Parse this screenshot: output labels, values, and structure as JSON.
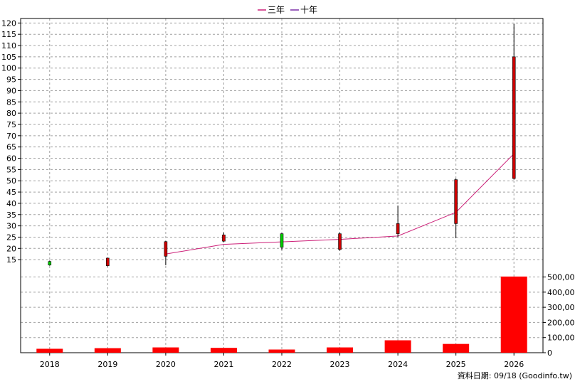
{
  "chart_data": {
    "type": "candlestick-with-volume",
    "legend": [
      {
        "name": "三年",
        "color": "#cc1f78"
      },
      {
        "name": "十年",
        "color": "#7a2fa8"
      }
    ],
    "categories": [
      "2018",
      "2019",
      "2020",
      "2021",
      "2022",
      "2023",
      "2024",
      "2025",
      "2026"
    ],
    "price_axis": {
      "min": 10,
      "max": 122,
      "ticks": [
        15,
        20,
        25,
        30,
        35,
        40,
        45,
        50,
        55,
        60,
        65,
        70,
        75,
        80,
        85,
        90,
        95,
        100,
        105,
        110,
        115,
        120
      ]
    },
    "volume_axis": {
      "min": 0,
      "max": 540000,
      "ticks": [
        0,
        100000,
        200000,
        300000,
        400000,
        500000
      ],
      "tick_labels": [
        "0",
        "100,000",
        "200,000",
        "300,000",
        "400,000",
        "500,000"
      ]
    },
    "candles": [
      {
        "year": "2018",
        "open": 12.6,
        "close": 14.2,
        "high": 14.6,
        "low": 12.3
      },
      {
        "year": "2019",
        "open": 15.7,
        "close": 12.3,
        "high": 15.9,
        "low": 12.0
      },
      {
        "year": "2020",
        "open": 23.0,
        "close": 16.5,
        "high": 23.3,
        "low": 12.5
      },
      {
        "year": "2021",
        "open": 26.0,
        "close": 23.2,
        "high": 27.0,
        "low": 22.8
      },
      {
        "year": "2022",
        "open": 20.5,
        "close": 26.5,
        "high": 26.8,
        "low": 19.2
      },
      {
        "year": "2023",
        "open": 26.5,
        "close": 19.5,
        "high": 27.0,
        "low": 19.0
      },
      {
        "year": "2024",
        "open": 31.0,
        "close": 26.5,
        "high": 39.0,
        "low": 25.0
      },
      {
        "year": "2025",
        "open": 50.5,
        "close": 31.0,
        "high": 51.0,
        "low": 24.5
      },
      {
        "year": "2026",
        "open": 105.0,
        "close": 51.0,
        "high": 119.5,
        "low": 50.5
      }
    ],
    "ma_lines": [
      {
        "name": "三年",
        "color": "#cc1f78",
        "points": [
          {
            "year": "2020",
            "value": 17.5
          },
          {
            "year": "2021",
            "value": 21.8
          },
          {
            "year": "2022",
            "value": 22.9
          },
          {
            "year": "2023",
            "value": 24.0
          },
          {
            "year": "2024",
            "value": 25.5
          },
          {
            "year": "2025",
            "value": 36.0
          },
          {
            "year": "2026",
            "value": 62.0
          }
        ]
      }
    ],
    "volume": [
      {
        "year": "2018",
        "value": 26000
      },
      {
        "year": "2019",
        "value": 30000
      },
      {
        "year": "2020",
        "value": 35000
      },
      {
        "year": "2021",
        "value": 32000
      },
      {
        "year": "2022",
        "value": 21000
      },
      {
        "year": "2023",
        "value": 35000
      },
      {
        "year": "2024",
        "value": 82000
      },
      {
        "year": "2025",
        "value": 58000
      },
      {
        "year": "2026",
        "value": 503000
      }
    ],
    "colors": {
      "up": "#00cc00",
      "down": "#cc0000",
      "volume": "#ff0000",
      "grid": "#a0a0a0",
      "axis": "#000000"
    },
    "grid": true,
    "legend_position": "top-center"
  },
  "source_note": "資料日期: 09/18  (Goodinfo.tw)"
}
